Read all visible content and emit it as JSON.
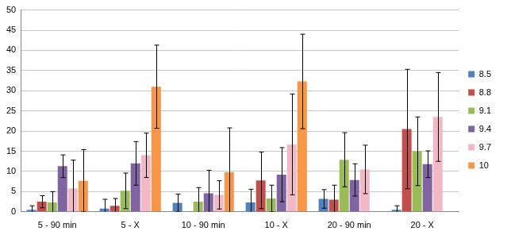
{
  "chart_data": {
    "type": "bar",
    "categories": [
      "5 - 90 min",
      "5 - X",
      "10 - 90 min",
      "10 - X",
      "20 - 90 min",
      "20 - X"
    ],
    "series": [
      {
        "name": "8.5",
        "color": "#4f81bd",
        "values": [
          0.5,
          0.8,
          2.2,
          2.3,
          3.2,
          0.5
        ],
        "errors": [
          1,
          2.3,
          2.2,
          3.3,
          2.3,
          1
        ]
      },
      {
        "name": "8.8",
        "color": "#c0504d",
        "values": [
          2.5,
          1.5,
          null,
          7.8,
          3,
          20.5
        ],
        "errors": [
          1.5,
          1.8,
          null,
          7,
          3.6,
          14.8
        ]
      },
      {
        "name": "9.1",
        "color": "#9bbb59",
        "values": [
          2.3,
          5.2,
          2.5,
          3.3,
          12.9,
          15
        ],
        "errors": [
          2.7,
          4.4,
          3.5,
          3.3,
          6.7,
          8.5
        ]
      },
      {
        "name": "9.4",
        "color": "#8064a2",
        "values": [
          11.3,
          12,
          4.6,
          9.2,
          7.9,
          11.8
        ],
        "errors": [
          2.8,
          5.4,
          5.7,
          6.7,
          4,
          3.3
        ]
      },
      {
        "name": "9.7",
        "color": "#f2b8c6",
        "values": [
          5.8,
          14,
          4.2,
          16.7,
          10.5,
          23.5
        ],
        "errors": [
          7,
          5.5,
          3.5,
          12.5,
          6,
          11
        ]
      },
      {
        "name": "10",
        "color": "#f79646",
        "values": [
          7.7,
          31,
          9.8,
          32.3,
          null,
          null
        ],
        "errors": [
          7.7,
          10.3,
          11,
          11.7,
          null,
          null
        ]
      }
    ],
    "ylim": [
      0,
      50
    ],
    "yticks": [
      0,
      5,
      10,
      15,
      20,
      25,
      30,
      35,
      40,
      45,
      50
    ],
    "grid": true,
    "legend": "right"
  }
}
